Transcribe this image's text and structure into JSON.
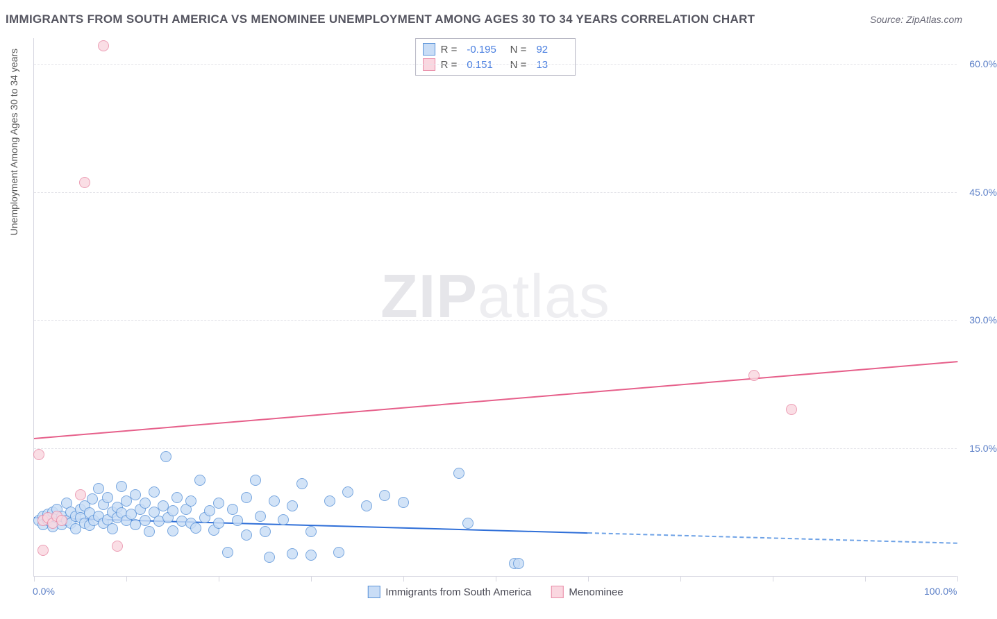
{
  "header": {
    "title": "IMMIGRANTS FROM SOUTH AMERICA VS MENOMINEE UNEMPLOYMENT AMONG AGES 30 TO 34 YEARS CORRELATION CHART",
    "source": "Source: ZipAtlas.com"
  },
  "watermark": {
    "a": "ZIP",
    "b": "atlas"
  },
  "chart": {
    "type": "scatter",
    "y_axis_title": "Unemployment Among Ages 30 to 34 years",
    "xlim": [
      0,
      100
    ],
    "ylim": [
      0,
      63
    ],
    "x_ticks": [
      0,
      10,
      20,
      30,
      40,
      50,
      60,
      70,
      80,
      90,
      100
    ],
    "x_labels": [
      {
        "v": 0,
        "t": "0.0%"
      },
      {
        "v": 100,
        "t": "100.0%"
      }
    ],
    "y_gridlines": [
      15,
      30,
      45,
      60
    ],
    "y_labels": [
      {
        "v": 15,
        "t": "15.0%"
      },
      {
        "v": 30,
        "t": "30.0%"
      },
      {
        "v": 45,
        "t": "45.0%"
      },
      {
        "v": 60,
        "t": "60.0%"
      }
    ],
    "background_color": "#ffffff",
    "grid_color": "#e2e2e8",
    "axis_color": "#d6d6e0",
    "tick_label_color": "#5b7fc7",
    "series": [
      {
        "name": "Immigrants from South America",
        "fill": "#c9ddf6",
        "stroke": "#5a93d8",
        "marker_radius": 8,
        "r": "-0.195",
        "n": "92",
        "trend": {
          "x1": 0,
          "y1": 7.0,
          "x2": 60,
          "y2": 5.2,
          "solid_color": "#2f6fd8",
          "dash_to_x": 100,
          "dash_color": "#6ea2e6"
        },
        "points": [
          [
            0.5,
            6.5
          ],
          [
            1,
            7
          ],
          [
            1,
            6
          ],
          [
            1.5,
            6.5
          ],
          [
            1.5,
            7.2
          ],
          [
            2,
            5.8
          ],
          [
            2,
            7.5
          ],
          [
            2.5,
            6.8
          ],
          [
            2.5,
            7.8
          ],
          [
            3,
            6
          ],
          [
            3,
            7
          ],
          [
            3.5,
            6.5
          ],
          [
            3.5,
            8.5
          ],
          [
            4,
            6.2
          ],
          [
            4,
            7.5
          ],
          [
            4.5,
            7
          ],
          [
            4.5,
            5.5
          ],
          [
            5,
            7.8
          ],
          [
            5,
            6.8
          ],
          [
            5.5,
            6.2
          ],
          [
            5.5,
            8.2
          ],
          [
            6,
            7.4
          ],
          [
            6,
            5.9
          ],
          [
            6.3,
            9
          ],
          [
            6.5,
            6.5
          ],
          [
            7,
            10.2
          ],
          [
            7,
            7
          ],
          [
            7.5,
            8.4
          ],
          [
            7.5,
            6.2
          ],
          [
            8,
            6.6
          ],
          [
            8,
            9.2
          ],
          [
            8.5,
            7.5
          ],
          [
            8.5,
            5.5
          ],
          [
            9,
            8
          ],
          [
            9,
            6.8
          ],
          [
            9.5,
            7.4
          ],
          [
            9.5,
            10.5
          ],
          [
            10,
            6.5
          ],
          [
            10,
            8.8
          ],
          [
            10.5,
            7.2
          ],
          [
            11,
            6
          ],
          [
            11,
            9.5
          ],
          [
            11.5,
            7.8
          ],
          [
            12,
            6.5
          ],
          [
            12,
            8.5
          ],
          [
            12.5,
            5.2
          ],
          [
            13,
            7.5
          ],
          [
            13,
            9.8
          ],
          [
            13.5,
            6.4
          ],
          [
            14,
            8.2
          ],
          [
            14.3,
            14
          ],
          [
            14.5,
            6.8
          ],
          [
            15,
            7.6
          ],
          [
            15,
            5.3
          ],
          [
            15.5,
            9.2
          ],
          [
            16,
            6.4
          ],
          [
            16.5,
            7.8
          ],
          [
            17,
            6.2
          ],
          [
            17,
            8.8
          ],
          [
            17.5,
            5.6
          ],
          [
            18,
            11.2
          ],
          [
            18.5,
            6.8
          ],
          [
            19,
            7.6
          ],
          [
            19.5,
            5.4
          ],
          [
            20,
            8.5
          ],
          [
            20,
            6.2
          ],
          [
            21,
            2.8
          ],
          [
            21.5,
            7.8
          ],
          [
            22,
            6.5
          ],
          [
            23,
            9.2
          ],
          [
            23,
            4.8
          ],
          [
            24,
            11.2
          ],
          [
            24.5,
            7
          ],
          [
            25,
            5.2
          ],
          [
            25.5,
            2.2
          ],
          [
            26,
            8.8
          ],
          [
            27,
            6.6
          ],
          [
            28,
            2.6
          ],
          [
            28,
            8.2
          ],
          [
            29,
            10.8
          ],
          [
            30,
            5.2
          ],
          [
            30,
            2.4
          ],
          [
            32,
            8.8
          ],
          [
            33,
            2.8
          ],
          [
            34,
            9.8
          ],
          [
            36,
            8.2
          ],
          [
            38,
            9.4
          ],
          [
            40,
            8.6
          ],
          [
            46,
            12
          ],
          [
            47,
            6.2
          ],
          [
            52,
            1.5
          ],
          [
            52.5,
            1.5
          ]
        ]
      },
      {
        "name": "Menominee",
        "fill": "#fad7e0",
        "stroke": "#e88aa6",
        "marker_radius": 8,
        "r": "0.151",
        "n": "13",
        "trend": {
          "x1": 0,
          "y1": 16.2,
          "x2": 100,
          "y2": 25.2,
          "solid_color": "#e65f8a"
        },
        "points": [
          [
            0.5,
            14.2
          ],
          [
            1,
            6.5
          ],
          [
            1,
            3
          ],
          [
            1.5,
            6.8
          ],
          [
            2,
            6.2
          ],
          [
            2.5,
            7
          ],
          [
            3,
            6.5
          ],
          [
            5,
            9.5
          ],
          [
            5.5,
            46
          ],
          [
            7.5,
            62
          ],
          [
            9,
            3.5
          ],
          [
            78,
            23.5
          ],
          [
            82,
            19.5
          ]
        ]
      }
    ],
    "legend_bottom": [
      {
        "label": "Immigrants from South America",
        "fill": "#c9ddf6",
        "stroke": "#5a93d8"
      },
      {
        "label": "Menominee",
        "fill": "#fad7e0",
        "stroke": "#e88aa6"
      }
    ]
  }
}
